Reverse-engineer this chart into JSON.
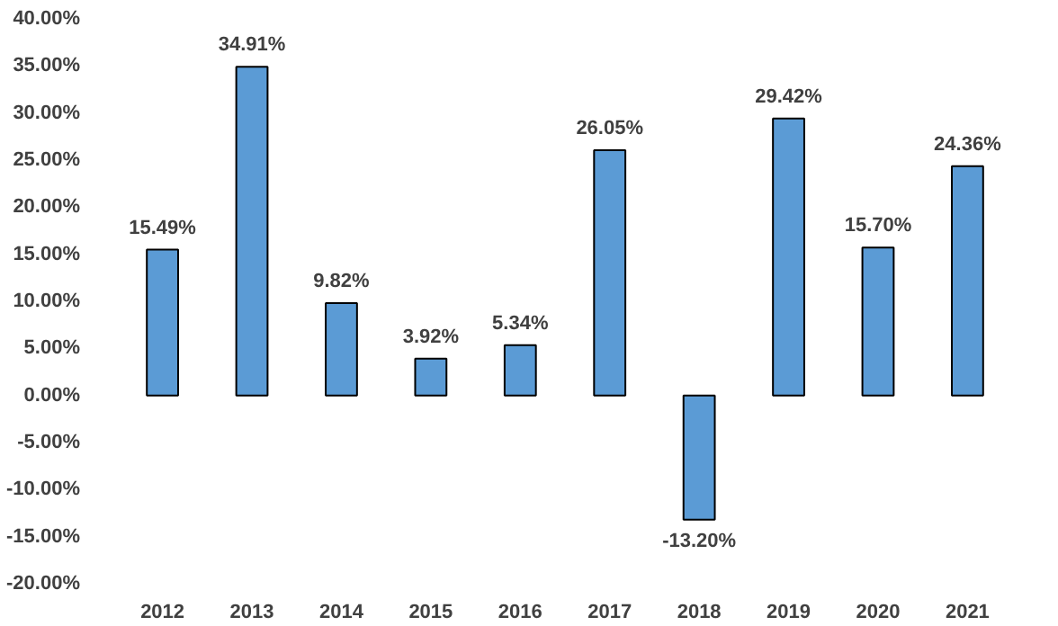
{
  "chart_data": {
    "type": "bar",
    "categories": [
      "2012",
      "2013",
      "2014",
      "2015",
      "2016",
      "2017",
      "2018",
      "2019",
      "2020",
      "2021"
    ],
    "values": [
      15.49,
      34.91,
      9.82,
      3.92,
      5.34,
      26.05,
      -13.2,
      29.42,
      15.7,
      24.36
    ],
    "value_labels": [
      "15.49%",
      "34.91%",
      "9.82%",
      "3.92%",
      "5.34%",
      "26.05%",
      "-13.20%",
      "29.42%",
      "15.70%",
      "24.36%"
    ],
    "color": "#5b9bd5",
    "ylim": [
      -20,
      40
    ],
    "yticks": [
      {
        "value": -20,
        "label": "-20.00%"
      },
      {
        "value": -15,
        "label": "-15.00%"
      },
      {
        "value": -10,
        "label": "-10.00%"
      },
      {
        "value": -5,
        "label": "-5.00%"
      },
      {
        "value": 0,
        "label": "0.00%"
      },
      {
        "value": 5,
        "label": "5.00%"
      },
      {
        "value": 10,
        "label": "10.00%"
      },
      {
        "value": 15,
        "label": "15.00%"
      },
      {
        "value": 20,
        "label": "20.00%"
      },
      {
        "value": 25,
        "label": "25.00%"
      },
      {
        "value": 30,
        "label": "30.00%"
      },
      {
        "value": 35,
        "label": "35.00%"
      },
      {
        "value": 40,
        "label": "40.00%"
      }
    ],
    "grid": false
  }
}
